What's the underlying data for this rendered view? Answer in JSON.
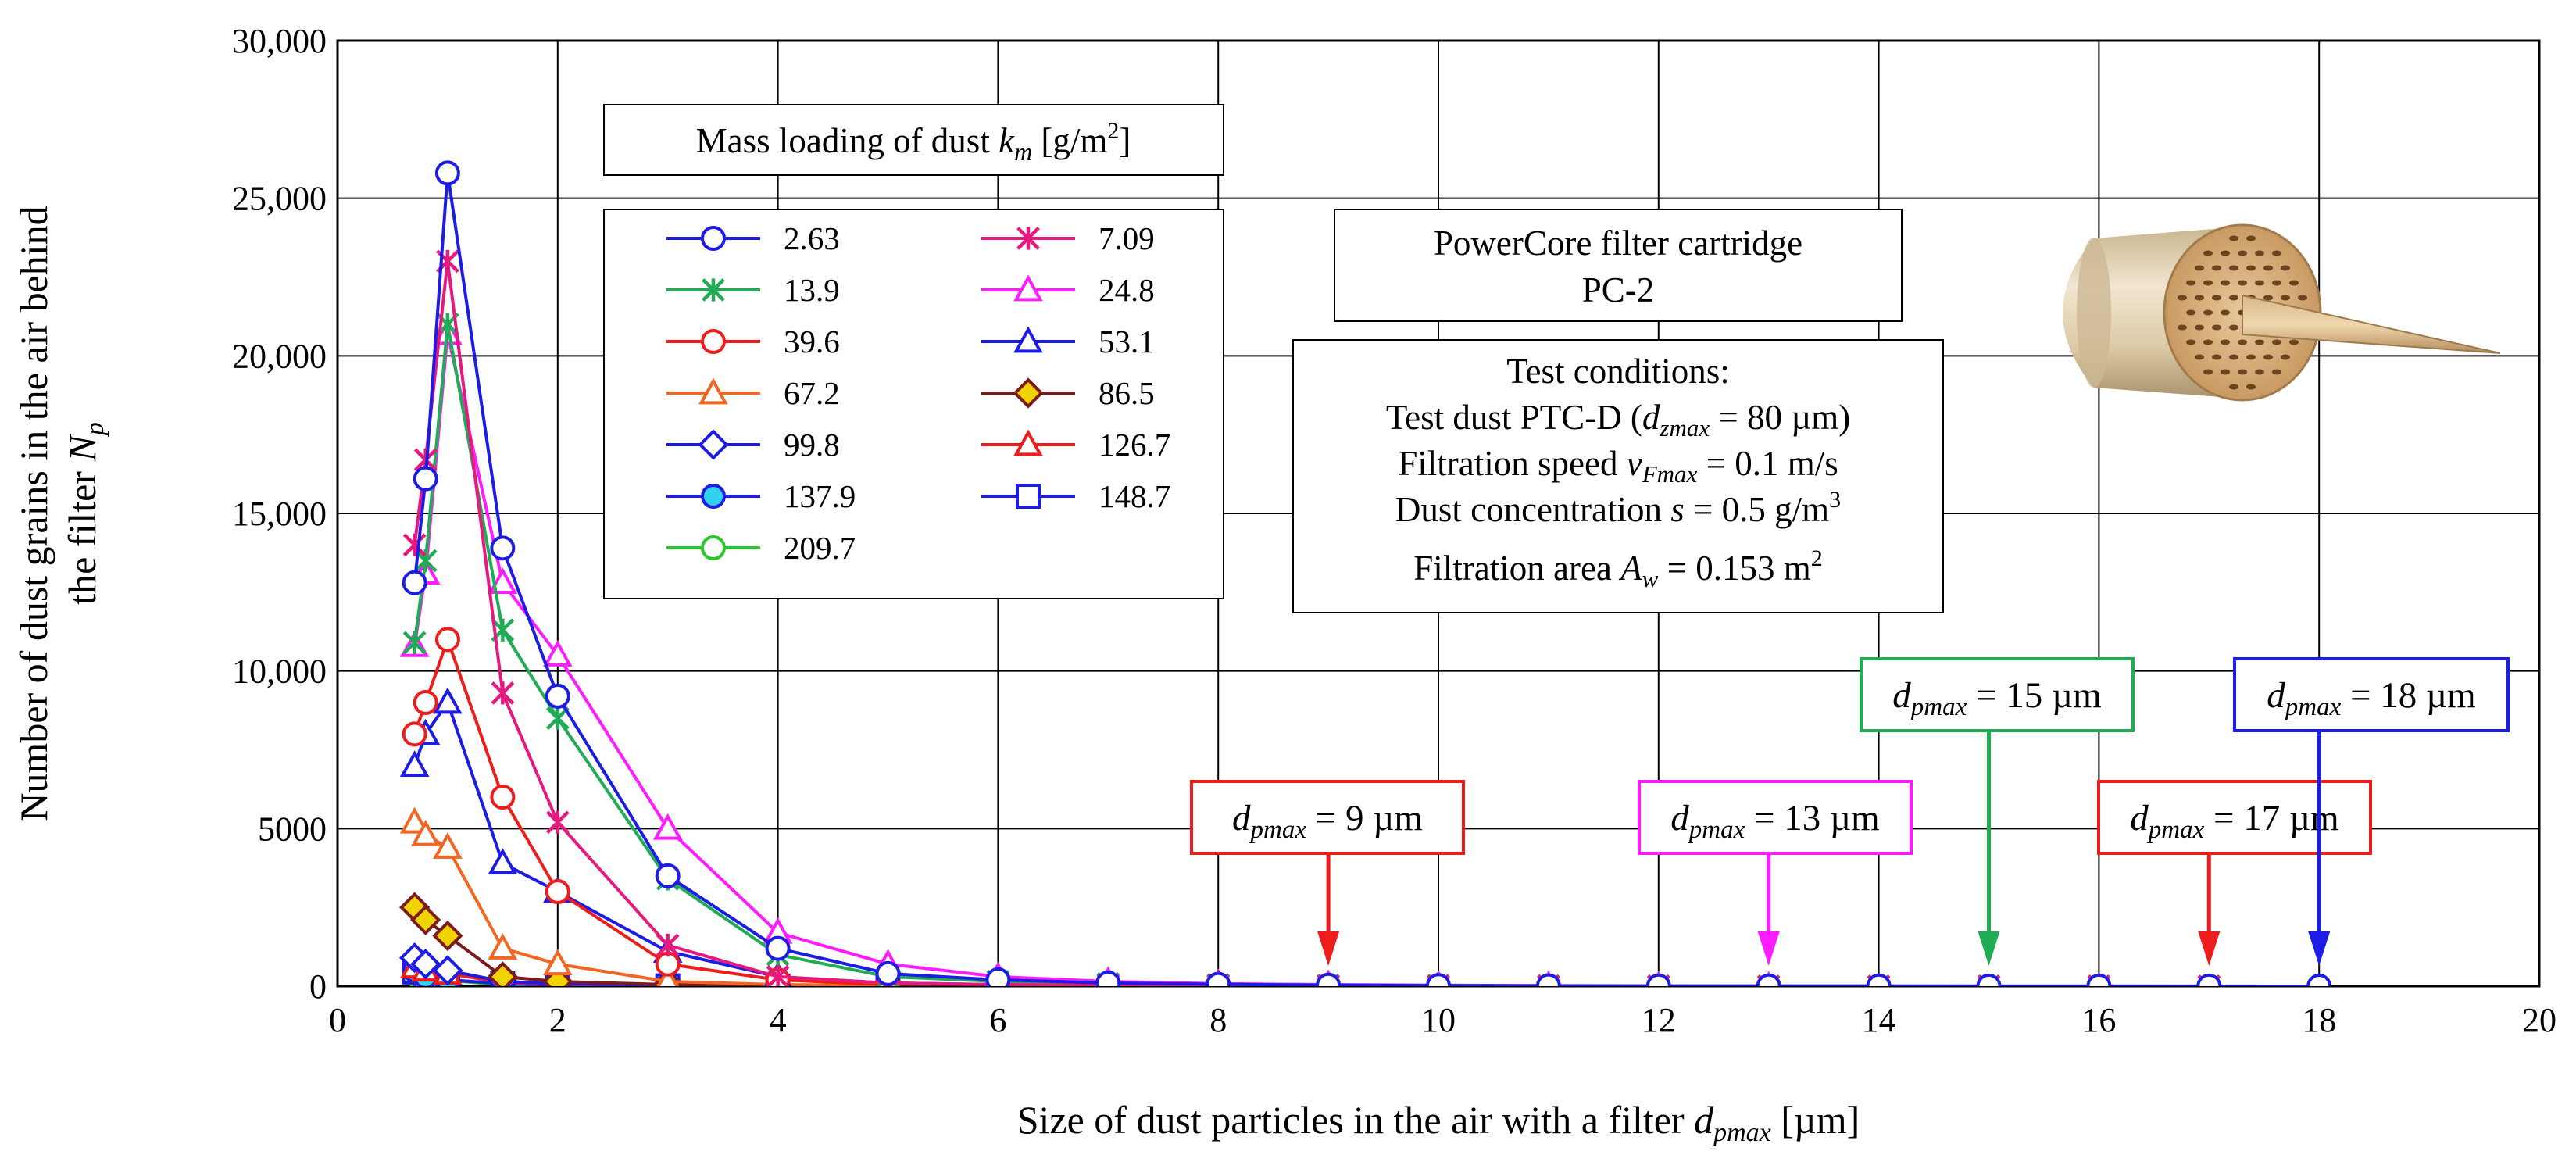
{
  "chart_data": {
    "type": "line",
    "xlabel": "Size of dust particles in the air with a filter",
    "xlabel_symbol": "d",
    "xlabel_sub": "pmax",
    "xlabel_unit": "[µm]",
    "ylabel_line1": "Number of dust grains in the air behind",
    "ylabel_line2": "the filter",
    "ylabel_symbol": "N",
    "ylabel_sub": "p",
    "xlim": [
      0,
      20
    ],
    "ylim": [
      0,
      30000
    ],
    "x_ticks": [
      {
        "value": 0,
        "label": "0"
      },
      {
        "value": 2,
        "label": "2"
      },
      {
        "value": 4,
        "label": "4"
      },
      {
        "value": 6,
        "label": "6"
      },
      {
        "value": 8,
        "label": "8"
      },
      {
        "value": 10,
        "label": "10"
      },
      {
        "value": 12,
        "label": "12"
      },
      {
        "value": 14,
        "label": "14"
      },
      {
        "value": 16,
        "label": "16"
      },
      {
        "value": 18,
        "label": "18"
      },
      {
        "value": 20,
        "label": "20"
      }
    ],
    "y_ticks": [
      {
        "value": 0,
        "label": "0"
      },
      {
        "value": 5000,
        "label": "5000"
      },
      {
        "value": 10000,
        "label": "10,000"
      },
      {
        "value": 15000,
        "label": "15,000"
      },
      {
        "value": 20000,
        "label": "20,000"
      },
      {
        "value": 25000,
        "label": "25,000"
      },
      {
        "value": 30000,
        "label": "30,000"
      }
    ],
    "grid": true,
    "legend_title": "Mass loading of dust",
    "legend_title_symbol": "k",
    "legend_title_sub": "m",
    "legend_title_unit_pre": "[g/m",
    "legend_title_unit_sup": "2",
    "legend_title_unit_post": "]",
    "series": [
      {
        "name": "2.63",
        "color": "#1c1ce6",
        "marker": "circle-open",
        "x": [
          0.7,
          0.8,
          1,
          1.5,
          2,
          3,
          4,
          5,
          6,
          7,
          8,
          9,
          10,
          11,
          12,
          13,
          14,
          15,
          16,
          17,
          18
        ],
        "y": [
          12800,
          16100,
          25800,
          13900,
          9200,
          3500,
          1200,
          400,
          200,
          100,
          60,
          30,
          20,
          10,
          5,
          5,
          5,
          3,
          3,
          2,
          0
        ]
      },
      {
        "name": "7.09",
        "color": "#e6197f",
        "marker": "asterisk",
        "x": [
          0.7,
          0.8,
          1,
          1.5,
          2,
          3,
          4,
          5,
          6,
          7,
          8,
          9,
          10,
          11,
          12,
          13,
          14,
          15,
          16,
          17
        ],
        "y": [
          14000,
          16700,
          23000,
          9300,
          5200,
          1300,
          300,
          100,
          50,
          30,
          20,
          10,
          10,
          5,
          5,
          3,
          3,
          2,
          2,
          0
        ]
      },
      {
        "name": "13.9",
        "color": "#1fac55",
        "marker": "asterisk",
        "x": [
          0.7,
          0.8,
          1,
          1.5,
          2,
          3,
          4,
          5,
          6,
          7,
          8,
          9,
          10,
          11,
          12,
          13,
          14,
          15
        ],
        "y": [
          10900,
          13500,
          21000,
          11300,
          8500,
          3400,
          1000,
          300,
          150,
          80,
          50,
          30,
          20,
          10,
          5,
          3,
          2,
          0
        ]
      },
      {
        "name": "24.8",
        "color": "#ff1bff",
        "marker": "triangle-open",
        "x": [
          0.7,
          0.8,
          1,
          1.5,
          2,
          3,
          4,
          5,
          6,
          7,
          8,
          9,
          10,
          11,
          12,
          13
        ],
        "y": [
          10800,
          13100,
          20700,
          12800,
          10500,
          5000,
          1700,
          700,
          300,
          150,
          80,
          50,
          30,
          20,
          10,
          0
        ]
      },
      {
        "name": "39.6",
        "color": "#ef1c1c",
        "marker": "circle-open",
        "x": [
          0.7,
          0.8,
          1,
          1.5,
          2,
          3,
          4,
          5
        ],
        "y": [
          8000,
          9000,
          11000,
          6000,
          3000,
          700,
          200,
          50
        ]
      },
      {
        "name": "53.1",
        "color": "#1c1ce6",
        "marker": "triangle-open",
        "x": [
          0.7,
          0.8,
          1,
          1.5,
          2,
          3,
          4,
          5,
          6,
          7,
          8,
          9
        ],
        "y": [
          7000,
          8000,
          9000,
          3900,
          3000,
          1100,
          300,
          100,
          50,
          30,
          10,
          0
        ]
      },
      {
        "name": "67.2",
        "color": "#f26522",
        "marker": "triangle-open",
        "x": [
          0.7,
          0.8,
          1,
          1.5,
          2,
          3,
          4,
          5
        ],
        "y": [
          5200,
          4800,
          4400,
          1200,
          700,
          150,
          50,
          20
        ]
      },
      {
        "name": "86.5",
        "color": "#7b1b1b",
        "marker": "diamond-yellow",
        "x": [
          0.7,
          0.8,
          1,
          1.5,
          2,
          3,
          4,
          5,
          6
        ],
        "y": [
          2500,
          2100,
          1600,
          300,
          150,
          50,
          20,
          10,
          0
        ]
      },
      {
        "name": "99.8",
        "color": "#1c1ce6",
        "marker": "diamond-open",
        "x": [
          0.7,
          0.8,
          1,
          1.5,
          2,
          3,
          4,
          5
        ],
        "y": [
          900,
          700,
          500,
          150,
          80,
          30,
          10,
          0
        ]
      },
      {
        "name": "126.7",
        "color": "#ef1c1c",
        "marker": "triangle-open",
        "x": [
          0.7,
          0.8,
          1,
          1.5,
          2,
          3,
          4,
          5,
          6,
          7
        ],
        "y": [
          600,
          500,
          400,
          120,
          60,
          30,
          15,
          5,
          0,
          0
        ]
      },
      {
        "name": "137.9",
        "color": "#1c1ce6",
        "marker": "circle-cyan",
        "x": [
          0.7,
          0.8,
          1,
          1.5,
          2,
          3
        ],
        "y": [
          500,
          300,
          200,
          80,
          40,
          10
        ]
      },
      {
        "name": "148.7",
        "color": "#1c1ce6",
        "marker": "square-open",
        "x": [
          0.7,
          0.8,
          1,
          1.5,
          2,
          3,
          4,
          5
        ],
        "y": [
          450,
          300,
          200,
          80,
          30,
          10,
          5,
          0
        ]
      },
      {
        "name": "209.7",
        "color": "#2bc62b",
        "marker": "circle-open",
        "x": [
          0.7,
          0.8,
          1,
          1.5,
          2,
          3,
          4,
          5
        ],
        "y": [
          380,
          300,
          180,
          50,
          20,
          10,
          5,
          0
        ]
      }
    ],
    "info_box": {
      "title_line1": "PowerCore filter cartridge",
      "title_line2": "PC-2"
    },
    "test_conditions": {
      "heading": "Test conditions:",
      "dust_pre": "Test dust PTC-D (",
      "dust_symbol": "d",
      "dust_sub": "zmax",
      "dust_post": " = 80 µm)",
      "speed_pre": "Filtration speed ",
      "speed_symbol": "v",
      "speed_sub": "Fmax",
      "speed_post": " = 0.1 m/s",
      "conc_pre": "Dust concentration ",
      "conc_symbol": "s",
      "conc_post_pre": " = 0.5 g/m",
      "conc_sup": "3",
      "area_pre": "Filtration area ",
      "area_symbol": "A",
      "area_sub": "w",
      "area_post_pre": " = 0.153 m",
      "area_sup": "2"
    },
    "annotations": [
      {
        "x": 9,
        "text_symbol": "d",
        "text_sub": "pmax",
        "text_value": " = 9 µm",
        "color": "#ef1c1c"
      },
      {
        "x": 13,
        "text_symbol": "d",
        "text_sub": "pmax",
        "text_value": " = 13 µm",
        "color": "#ff1bff"
      },
      {
        "x": 15,
        "text_symbol": "d",
        "text_sub": "pmax",
        "text_value": " = 15 µm",
        "color": "#1fac55"
      },
      {
        "x": 17,
        "text_symbol": "d",
        "text_sub": "pmax",
        "text_value": " = 17 µm",
        "color": "#ef1c1c"
      },
      {
        "x": 18,
        "text_symbol": "d",
        "text_sub": "pmax",
        "text_value": " = 18 µm",
        "color": "#1c1ce6"
      }
    ]
  }
}
